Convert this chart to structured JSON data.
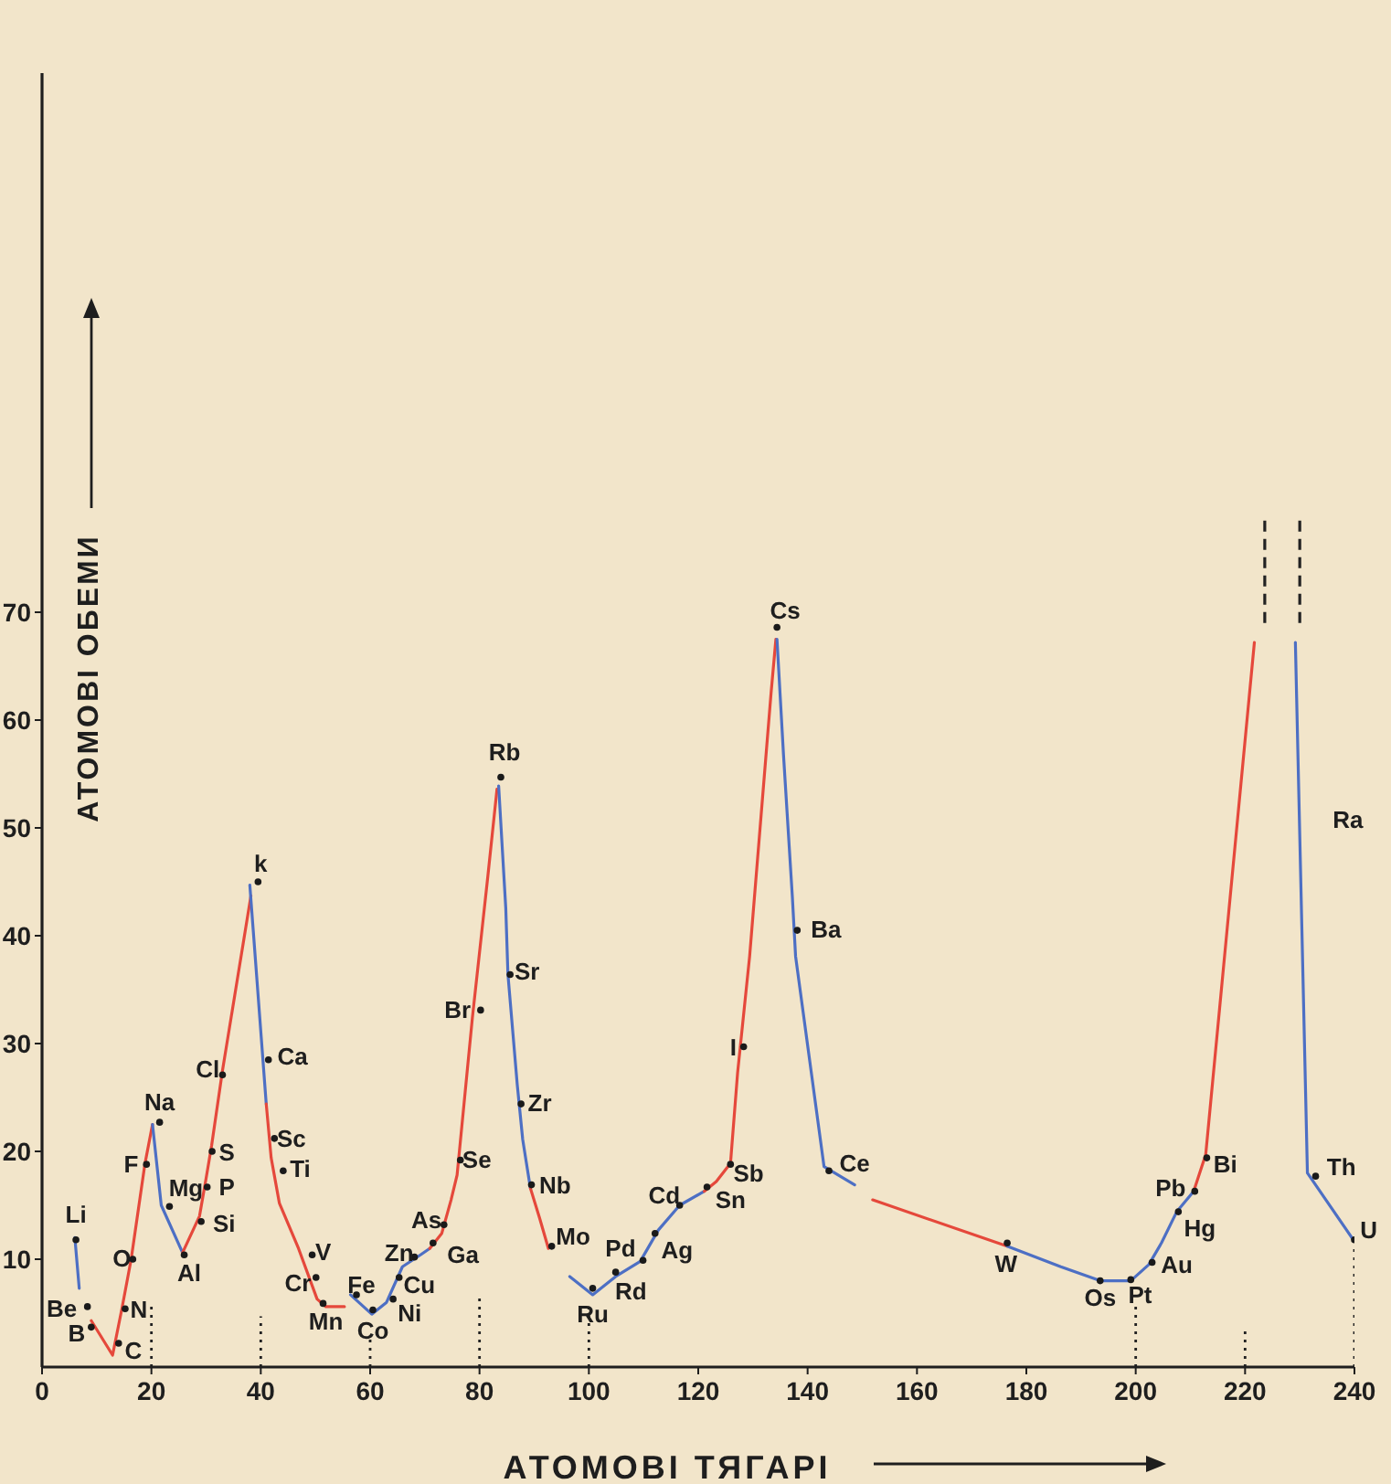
{
  "chart_data": {
    "type": "line",
    "xlabel": "АТОМОВІ ТЯГАРІ",
    "ylabel": "АТОМОВІ ОБЕМИ",
    "xlim": [
      0,
      240
    ],
    "xticks": [
      0,
      20,
      40,
      60,
      80,
      100,
      120,
      140,
      160,
      180,
      200,
      220,
      240
    ],
    "ylim": [
      0,
      120
    ],
    "yticks": [
      10,
      20,
      30,
      40,
      50,
      60,
      70
    ],
    "series": [
      {
        "color": "#4d6fc4",
        "x": [
          6.0,
          6.8
        ],
        "values": [
          12.0,
          7.3
        ]
      },
      {
        "color": "#e5483b",
        "x": [
          9.0,
          12.9,
          14.6,
          16.3,
          18.8,
          20.2
        ],
        "values": [
          4.3,
          1.1,
          5.4,
          10.0,
          18.8,
          22.5
        ]
      },
      {
        "color": "#4d6fc4",
        "x": [
          20.2,
          21.8,
          25.7
        ],
        "values": [
          22.5,
          15.0,
          10.6
        ]
      },
      {
        "color": "#e5483b",
        "x": [
          25.7,
          28.8,
          30.0,
          31.0,
          33.0,
          38.2
        ],
        "values": [
          10.6,
          14.0,
          17.5,
          20.5,
          27.5,
          43.7
        ]
      },
      {
        "color": "#4d6fc4",
        "x": [
          38.0,
          41.0
        ],
        "values": [
          44.7,
          24.4
        ]
      },
      {
        "color": "#e5483b",
        "x": [
          41.0,
          41.9,
          43.4,
          46.9,
          50.3,
          51.9,
          55.3
        ],
        "values": [
          24.4,
          19.4,
          15.2,
          11.0,
          6.3,
          5.6,
          5.6
        ]
      },
      {
        "color": "#4d6fc4",
        "x": [
          56.4,
          60.3,
          63.0,
          65.9,
          69.2,
          70.9
        ],
        "values": [
          6.7,
          4.9,
          6.0,
          9.3,
          10.4,
          11.0
        ]
      },
      {
        "color": "#e5483b",
        "x": [
          70.9,
          73.1,
          74.8,
          75.9,
          78.7,
          81.5,
          83.2
        ],
        "values": [
          11.0,
          12.4,
          15.5,
          17.8,
          32.4,
          45.4,
          53.6
        ]
      },
      {
        "color": "#4d6fc4",
        "x": [
          83.5,
          84.8,
          85.2,
          86.9,
          87.9,
          89.3
        ],
        "values": [
          53.9,
          42.6,
          36.4,
          26.2,
          21.1,
          16.6
        ]
      },
      {
        "color": "#e5483b",
        "x": [
          89.3,
          91.0,
          92.6
        ],
        "values": [
          16.6,
          13.8,
          11.0
        ]
      },
      {
        "color": "#4d6fc4",
        "x": [
          96.5,
          100.7,
          104.9,
          109.4,
          112.7,
          116.6,
          121.1
        ],
        "values": [
          8.4,
          6.7,
          8.4,
          9.8,
          12.7,
          15.0,
          16.3
        ]
      },
      {
        "color": "#e5483b",
        "x": [
          121.1,
          123.3,
          125.9,
          127.2,
          129.4,
          133.3,
          134.2
        ],
        "values": [
          16.3,
          17.2,
          18.9,
          27.3,
          38.1,
          62.4,
          67.5
        ]
      },
      {
        "color": "#4d6fc4",
        "x": [
          134.4,
          135.6,
          137.2,
          137.8,
          143.0,
          148.6
        ],
        "values": [
          67.5,
          56.7,
          43.7,
          38.1,
          18.6,
          16.9
        ]
      },
      {
        "color": "#e5483b",
        "x": [
          151.9,
          176.5
        ],
        "values": [
          15.5,
          11.2
        ]
      },
      {
        "color": "#4d6fc4",
        "x": [
          176.5,
          186.3,
          193.5,
          199.1,
          202.4,
          204.7,
          207.5,
          210.6
        ],
        "values": [
          11.2,
          9.3,
          8.0,
          8.0,
          9.5,
          11.5,
          14.4,
          16.3
        ]
      },
      {
        "color": "#e5483b",
        "x": [
          210.6,
          212.8,
          221.7
        ],
        "values": [
          16.3,
          19.7,
          67.2
        ]
      },
      {
        "color": "#4d6fc4",
        "x": [
          229.2,
          231.4,
          239.8
        ],
        "values": [
          67.2,
          18.0,
          11.8
        ]
      },
      {
        "color": "#222222",
        "line_style": "dashed",
        "x": [
          223.6,
          223.6
        ],
        "values": [
          69,
          79
        ]
      },
      {
        "color": "#222222",
        "line_style": "dashed",
        "x": [
          230.0,
          230.0
        ],
        "values": [
          69,
          79
        ]
      },
      {
        "color": "#222222",
        "line_style": "dotted",
        "x": [
          20,
          20
        ],
        "values": [
          0,
          5.9
        ]
      },
      {
        "color": "#222222",
        "line_style": "dotted",
        "x": [
          40,
          40
        ],
        "values": [
          0,
          4.7
        ]
      },
      {
        "color": "#222222",
        "line_style": "dotted",
        "x": [
          60,
          60
        ],
        "values": [
          0,
          3.0
        ]
      },
      {
        "color": "#222222",
        "line_style": "dotted",
        "x": [
          80,
          80
        ],
        "values": [
          0,
          6.8
        ]
      },
      {
        "color": "#222222",
        "line_style": "dotted",
        "x": [
          100,
          100
        ],
        "values": [
          0,
          5.9
        ]
      },
      {
        "color": "#222222",
        "line_style": "dotted",
        "x": [
          200,
          200
        ],
        "values": [
          0,
          5.9
        ]
      },
      {
        "color": "#222222",
        "line_style": "dotted",
        "x": [
          220,
          220
        ],
        "values": [
          0,
          3.6
        ]
      },
      {
        "color": "#222222",
        "line_style": "dotted",
        "x": [
          240,
          240
        ],
        "values": [
          0,
          11.0
        ]
      },
      {
        "type": "scatter",
        "marker": "circle",
        "color": "#1a1a1a",
        "x": [
          6.2,
          8.3,
          9.0,
          14.0,
          15.2,
          16.6,
          19.1,
          21.5,
          23.3,
          26.0,
          29.1,
          30.2,
          31.1,
          33.0,
          39.5,
          41.4,
          42.5,
          44.1,
          49.4,
          50.1,
          51.4,
          57.5,
          60.5,
          64.2,
          65.3,
          68.1,
          71.5,
          73.5,
          76.5,
          80.2,
          83.9,
          85.6,
          87.6,
          89.5,
          93.2,
          100.7,
          104.9,
          109.9,
          112.1,
          116.6,
          121.6,
          125.9,
          128.3,
          134.4,
          138.1,
          143.9,
          176.5,
          193.5,
          199.1,
          203.0,
          207.8,
          210.8,
          213.0,
          232.9,
          240.0
        ],
        "values": [
          11.8,
          5.6,
          3.7,
          2.2,
          5.4,
          10.0,
          18.8,
          22.7,
          14.9,
          10.4,
          13.5,
          16.7,
          20.0,
          27.1,
          45.0,
          28.5,
          21.2,
          18.2,
          10.4,
          8.3,
          5.9,
          6.7,
          5.3,
          6.3,
          8.3,
          10.2,
          11.5,
          13.2,
          19.2,
          33.1,
          54.7,
          36.4,
          24.4,
          16.9,
          11.2,
          7.3,
          8.8,
          9.9,
          12.4,
          15.0,
          16.7,
          18.8,
          29.7,
          68.6,
          40.5,
          18.2,
          11.5,
          8.0,
          8.1,
          9.7,
          14.4,
          16.3,
          19.4,
          17.7,
          11.8
        ]
      }
    ],
    "annotations": [
      {
        "text": "Li",
        "x": 6.2,
        "y": 11.8
      },
      {
        "text": "Be",
        "x": 8.3,
        "y": 5.6
      },
      {
        "text": "B",
        "x": 9.0,
        "y": 3.7
      },
      {
        "text": "C",
        "x": 14.0,
        "y": 2.2
      },
      {
        "text": "N",
        "x": 15.2,
        "y": 5.4
      },
      {
        "text": "O",
        "x": 16.6,
        "y": 10.0
      },
      {
        "text": "F",
        "x": 19.1,
        "y": 18.8
      },
      {
        "text": "Na",
        "x": 21.5,
        "y": 22.7
      },
      {
        "text": "Mg",
        "x": 23.3,
        "y": 14.9
      },
      {
        "text": "Al",
        "x": 26.0,
        "y": 10.4
      },
      {
        "text": "Si",
        "x": 29.1,
        "y": 13.5
      },
      {
        "text": "P",
        "x": 30.2,
        "y": 16.7
      },
      {
        "text": "S",
        "x": 31.1,
        "y": 20.0
      },
      {
        "text": "Cl",
        "x": 33.0,
        "y": 27.1
      },
      {
        "text": "k",
        "x": 39.5,
        "y": 45.0
      },
      {
        "text": "Ca",
        "x": 41.4,
        "y": 28.5
      },
      {
        "text": "Sc",
        "x": 42.5,
        "y": 21.2
      },
      {
        "text": "Ti",
        "x": 44.1,
        "y": 18.2
      },
      {
        "text": "V",
        "x": 49.4,
        "y": 10.4
      },
      {
        "text": "Cr",
        "x": 50.1,
        "y": 8.3
      },
      {
        "text": "Mn",
        "x": 51.4,
        "y": 5.9
      },
      {
        "text": "Fe",
        "x": 57.5,
        "y": 6.7
      },
      {
        "text": "Co",
        "x": 60.5,
        "y": 5.3
      },
      {
        "text": "Ni",
        "x": 64.2,
        "y": 6.3
      },
      {
        "text": "Cu",
        "x": 65.3,
        "y": 8.3
      },
      {
        "text": "Zn",
        "x": 68.1,
        "y": 10.2
      },
      {
        "text": "Ga",
        "x": 71.5,
        "y": 11.5
      },
      {
        "text": "As",
        "x": 73.5,
        "y": 13.2
      },
      {
        "text": "Se",
        "x": 76.5,
        "y": 19.2
      },
      {
        "text": "Br",
        "x": 80.2,
        "y": 33.1
      },
      {
        "text": "Rb",
        "x": 83.9,
        "y": 54.7
      },
      {
        "text": "Sr",
        "x": 85.6,
        "y": 36.4
      },
      {
        "text": "Zr",
        "x": 87.6,
        "y": 24.4
      },
      {
        "text": "Nb",
        "x": 89.5,
        "y": 16.9
      },
      {
        "text": "Mo",
        "x": 93.2,
        "y": 11.2
      },
      {
        "text": "Ru",
        "x": 100.7,
        "y": 7.3
      },
      {
        "text": "Rd",
        "x": 104.9,
        "y": 8.8
      },
      {
        "text": "Pd",
        "x": 109.9,
        "y": 9.9
      },
      {
        "text": "Ag",
        "x": 112.1,
        "y": 12.4
      },
      {
        "text": "Cd",
        "x": 116.6,
        "y": 15.0
      },
      {
        "text": "Sn",
        "x": 121.6,
        "y": 16.7
      },
      {
        "text": "Sb",
        "x": 125.9,
        "y": 18.8
      },
      {
        "text": "I",
        "x": 128.3,
        "y": 29.7
      },
      {
        "text": "Cs",
        "x": 134.4,
        "y": 68.6
      },
      {
        "text": "Ba",
        "x": 138.1,
        "y": 40.5
      },
      {
        "text": "Ce",
        "x": 143.9,
        "y": 18.2
      },
      {
        "text": "W",
        "x": 176.5,
        "y": 11.5
      },
      {
        "text": "Os",
        "x": 193.5,
        "y": 8.0
      },
      {
        "text": "Pt",
        "x": 199.1,
        "y": 8.1
      },
      {
        "text": "Au",
        "x": 203.0,
        "y": 9.7
      },
      {
        "text": "Hg",
        "x": 207.8,
        "y": 14.4
      },
      {
        "text": "Pb",
        "x": 210.8,
        "y": 16.3
      },
      {
        "text": "Bi",
        "x": 213.0,
        "y": 19.4
      },
      {
        "text": "Th",
        "x": 232.9,
        "y": 17.7
      },
      {
        "text": "U",
        "x": 240.0,
        "y": 11.8
      },
      {
        "text": "Ra",
        "x": 229.9,
        "y": 50.8
      }
    ]
  }
}
